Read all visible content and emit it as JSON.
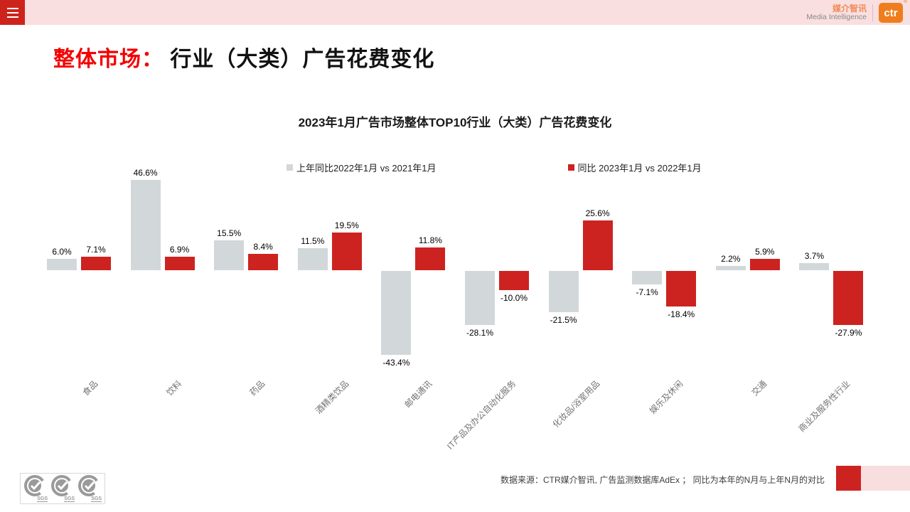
{
  "header": {
    "brand_cn": "媒介智讯",
    "brand_en": "Media Intelligence",
    "logo_text": "ctr",
    "logo_reg": "®"
  },
  "page_title": {
    "highlight": "整体市场：",
    "rest": " 行业（大类）广告花费变化"
  },
  "chart_data": {
    "type": "bar",
    "title": "2023年1月广告市场整体TOP10行业（大类）广告花费变化",
    "categories": [
      "食品",
      "饮料",
      "药品",
      "酒精类饮品",
      "邮电通讯",
      "IT产品及办公自动化服务",
      "化妆品/浴室用品",
      "娱乐及休闲",
      "交通",
      "商业及服务性行业"
    ],
    "series": [
      {
        "name": "上年同比2022年1月  vs 2021年1月",
        "color": "#d2d7da",
        "values": [
          6.0,
          46.6,
          15.5,
          11.5,
          -43.4,
          -28.1,
          -21.5,
          -7.1,
          2.2,
          3.7
        ]
      },
      {
        "name": "同比 2023年1月  vs 2022年1月",
        "color": "#cc2320",
        "values": [
          7.1,
          6.9,
          8.4,
          19.5,
          11.8,
          -10.0,
          25.6,
          -18.4,
          5.9,
          -27.9
        ]
      }
    ],
    "value_suffix": "%",
    "ylim": [
      -50,
      50
    ],
    "grid": false,
    "legend_position": "top",
    "xlabel": "",
    "ylabel": ""
  },
  "footer": {
    "source": "数据来源：CTR媒介智讯, 广告监测数据库AdEx ；  同比为本年的N月与上年N月的对比",
    "sgs_label": "SGS"
  },
  "colors": {
    "accent_red": "#cc2320",
    "bar_gray": "#d2d7da",
    "topbar_pink": "#f9dfdf",
    "title_red": "#f40000",
    "logo_orange": "#f07d1d"
  }
}
